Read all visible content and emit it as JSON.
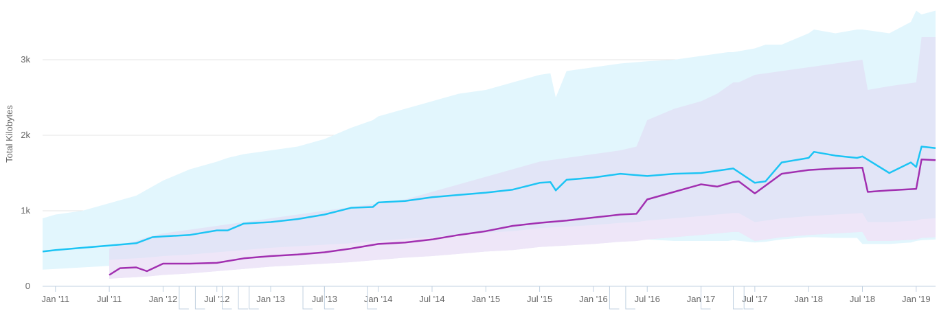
{
  "chart_data": {
    "type": "area",
    "ylabel": "Total Kilobytes",
    "x_ticks": [
      "Jan '11",
      "Jul '11",
      "Jan '12",
      "Jul '12",
      "Jan '13",
      "Jul '13",
      "Jan '14",
      "Jul '14",
      "Jan '15",
      "Jul '15",
      "Jan '16",
      "Jul '16",
      "Jan '17",
      "Jul '17",
      "Jan '18",
      "Jul '18",
      "Jan '19"
    ],
    "y_ticks": [
      "0",
      "1k",
      "2k",
      "3k"
    ],
    "ylim": [
      0,
      3700
    ],
    "xlim": [
      2010.88,
      2019.18
    ],
    "grid": true,
    "colors": {
      "series1_line": "#1cc4f4",
      "series1_band": "#e2f6fd",
      "series2_line": "#a12fb0",
      "series2_band": "#eee6f8",
      "overlap_band": "#e2e2f6",
      "grid": "#e6e6e6",
      "axis": "#c0d0e0"
    },
    "series": [
      {
        "line_color": "#1cc4f4",
        "x": [
          2010.88,
          2011.0,
          2011.25,
          2011.5,
          2011.75,
          2011.9,
          2012.0,
          2012.25,
          2012.5,
          2012.6,
          2012.75,
          2013.0,
          2013.25,
          2013.5,
          2013.75,
          2013.95,
          2014.0,
          2014.25,
          2014.5,
          2014.75,
          2015.0,
          2015.25,
          2015.5,
          2015.6,
          2015.65,
          2015.75,
          2016.0,
          2016.25,
          2016.5,
          2016.75,
          2017.0,
          2017.25,
          2017.3,
          2017.5,
          2017.6,
          2017.75,
          2018.0,
          2018.05,
          2018.25,
          2018.45,
          2018.5,
          2018.75,
          2018.95,
          2019.0,
          2019.05,
          2019.18
        ],
        "y": [
          460,
          480,
          510,
          540,
          570,
          650,
          660,
          680,
          740,
          740,
          830,
          850,
          890,
          950,
          1040,
          1050,
          1110,
          1130,
          1180,
          1210,
          1240,
          1280,
          1370,
          1380,
          1270,
          1410,
          1440,
          1490,
          1460,
          1490,
          1500,
          1550,
          1560,
          1370,
          1390,
          1640,
          1700,
          1780,
          1730,
          1700,
          1720,
          1500,
          1640,
          1580,
          1850,
          1830
        ],
        "band_low": [
          220,
          230,
          250,
          270,
          285,
          300,
          300,
          310,
          340,
          345,
          360,
          380,
          400,
          420,
          460,
          480,
          500,
          510,
          520,
          540,
          550,
          560,
          590,
          600,
          560,
          600,
          610,
          620,
          620,
          600,
          600,
          600,
          610,
          580,
          590,
          620,
          650,
          650,
          640,
          640,
          560,
          560,
          580,
          600,
          610,
          620
        ],
        "band_high": [
          900,
          950,
          1000,
          1100,
          1200,
          1320,
          1400,
          1550,
          1650,
          1700,
          1750,
          1800,
          1850,
          1950,
          2100,
          2200,
          2250,
          2350,
          2450,
          2550,
          2600,
          2700,
          2800,
          2820,
          2500,
          2850,
          2900,
          2950,
          2980,
          3000,
          3050,
          3100,
          3100,
          3150,
          3200,
          3200,
          3350,
          3400,
          3350,
          3400,
          3400,
          3350,
          3500,
          3650,
          3600,
          3650
        ]
      },
      {
        "line_color": "#a12fb0",
        "x": [
          2011.5,
          2011.6,
          2011.75,
          2011.85,
          2012.0,
          2012.25,
          2012.5,
          2012.75,
          2013.0,
          2013.25,
          2013.5,
          2013.75,
          2014.0,
          2014.25,
          2014.5,
          2014.75,
          2015.0,
          2015.25,
          2015.5,
          2015.75,
          2016.0,
          2016.25,
          2016.4,
          2016.5,
          2016.75,
          2017.0,
          2017.15,
          2017.3,
          2017.35,
          2017.5,
          2017.75,
          2018.0,
          2018.25,
          2018.5,
          2018.55,
          2018.75,
          2019.0,
          2019.05,
          2019.18
        ],
        "y": [
          150,
          240,
          250,
          200,
          300,
          300,
          310,
          370,
          400,
          420,
          450,
          500,
          560,
          580,
          620,
          680,
          730,
          800,
          840,
          870,
          910,
          950,
          960,
          1150,
          1250,
          1350,
          1320,
          1380,
          1390,
          1230,
          1490,
          1540,
          1560,
          1570,
          1250,
          1270,
          1290,
          1680,
          1670
        ],
        "band_low": [
          100,
          110,
          120,
          130,
          150,
          170,
          200,
          230,
          260,
          280,
          300,
          320,
          350,
          380,
          400,
          430,
          460,
          480,
          520,
          540,
          560,
          590,
          600,
          620,
          650,
          680,
          700,
          720,
          720,
          600,
          650,
          680,
          700,
          720,
          600,
          600,
          620,
          640,
          650
        ],
        "band_high": [
          500,
          550,
          600,
          650,
          700,
          750,
          800,
          850,
          900,
          950,
          1000,
          1050,
          1100,
          1150,
          1250,
          1350,
          1450,
          1550,
          1650,
          1700,
          1750,
          1800,
          1850,
          2200,
          2350,
          2450,
          2550,
          2700,
          2700,
          2800,
          2850,
          2900,
          2950,
          3000,
          2600,
          2650,
          2700,
          3300,
          3300
        ]
      }
    ]
  }
}
